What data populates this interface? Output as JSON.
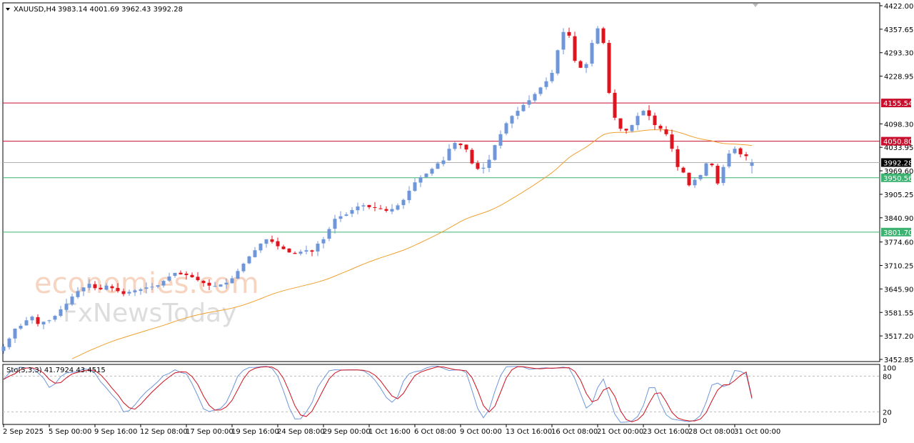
{
  "header": {
    "symbol": "XAUUSD,H4",
    "ohlc": "3983.14 4001.69 3962.43 3992.28"
  },
  "indicator": {
    "label": "Sto(5,3,3) 41.7924 43.4515",
    "levels": [
      "100",
      "80",
      "20",
      "0"
    ]
  },
  "watermarks": [
    "economies.com",
    "FxNewsToday"
  ],
  "colors": {
    "bull": "#6f97d8",
    "bear": "#e0141e",
    "ma": "#f0a030",
    "resistance": "#c8102e",
    "support": "#3cb371",
    "bid": "#000000",
    "stoch_main": "#6f97d8",
    "stoch_signal": "#d0101e"
  },
  "chart_data": {
    "type": "candlestick",
    "symbol": "XAUUSD",
    "timeframe": "H4",
    "ylim": [
      3452.85,
      4422.0
    ],
    "y_ticks": [
      "4422.00",
      "4357.65",
      "4293.30",
      "4228.95",
      "4098.30",
      "4033.95",
      "3969.60",
      "3905.25",
      "3840.90",
      "3774.60",
      "3710.25",
      "3645.90",
      "3581.55",
      "3517.20",
      "3452.85"
    ],
    "x_ticks": [
      "2 Sep 2025",
      "5 Sep 00:00",
      "9 Sep 16:00",
      "12 Sep 08:00",
      "17 Sep 00:00",
      "19 Sep 16:00",
      "24 Sep 08:00",
      "29 Sep 00:00",
      "1 Oct 16:00",
      "6 Oct 08:00",
      "9 Oct 00:00",
      "13 Oct 16:00",
      "16 Oct 08:00",
      "21 Oct 00:00",
      "23 Oct 16:00",
      "28 Oct 08:00",
      "31 Oct 00:00"
    ],
    "closes": [
      3488,
      3510,
      3537,
      3545,
      3560,
      3570,
      3550,
      3556,
      3560,
      3572,
      3590,
      3605,
      3625,
      3640,
      3650,
      3660,
      3648,
      3645,
      3655,
      3648,
      3640,
      3632,
      3638,
      3642,
      3645,
      3650,
      3652,
      3656,
      3668,
      3680,
      3690,
      3686,
      3684,
      3678,
      3670,
      3662,
      3655,
      3654,
      3658,
      3663,
      3675,
      3695,
      3715,
      3735,
      3752,
      3770,
      3782,
      3775,
      3763,
      3755,
      3746,
      3742,
      3748,
      3752,
      3748,
      3770,
      3782,
      3810,
      3838,
      3845,
      3850,
      3862,
      3872,
      3875,
      3870,
      3868,
      3866,
      3860,
      3865,
      3875,
      3890,
      3915,
      3938,
      3952,
      3962,
      3975,
      3990,
      3998,
      4030,
      4046,
      4040,
      4028,
      3990,
      3975,
      3978,
      4000,
      4040,
      4070,
      4100,
      4120,
      4134,
      4150,
      4163,
      4180,
      4198,
      4215,
      4238,
      4300,
      4350,
      4340,
      4271,
      4252,
      4262,
      4320,
      4360,
      4320,
      4183,
      4115,
      4085,
      4080,
      4095,
      4120,
      4134,
      4120,
      4095,
      4085,
      4070,
      4030,
      3980,
      3965,
      3930,
      3945,
      3958,
      3990,
      3985,
      3935,
      3980,
      4017,
      4030,
      4015,
      4010,
      3992.28
    ],
    "last_bar": {
      "open": 3983.14,
      "high": 4001.69,
      "low": 3962.43,
      "close": 3992.28
    },
    "horizontal_lines": [
      {
        "price": "4155.54",
        "kind": "resistance"
      },
      {
        "price": "4050.80",
        "kind": "resistance"
      },
      {
        "price": "3992.28",
        "kind": "bid"
      },
      {
        "price": "3950.56",
        "kind": "support"
      },
      {
        "price": "3801.70",
        "kind": "support"
      }
    ],
    "moving_average": true,
    "stochastic": {
      "k": 5,
      "d": 3,
      "slowing": 3,
      "main": 41.7924,
      "signal": 43.4515,
      "levels": [
        80,
        20
      ]
    }
  }
}
